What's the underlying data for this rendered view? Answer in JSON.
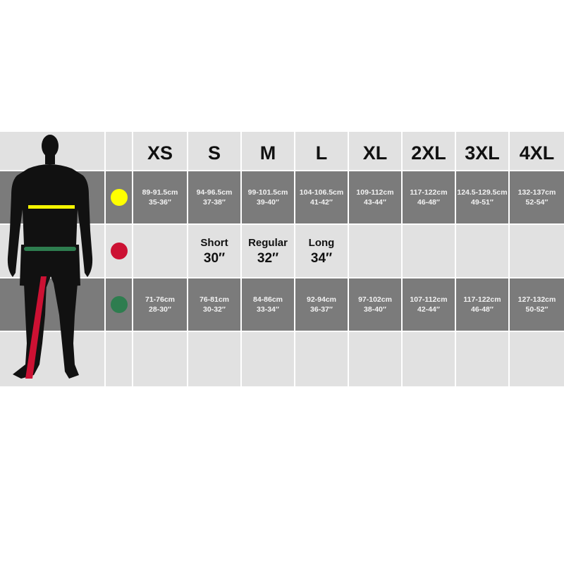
{
  "sizes": [
    "XS",
    "S",
    "M",
    "L",
    "XL",
    "2XL",
    "3XL",
    "4XL"
  ],
  "rows": {
    "chest": {
      "indicator_color": "#ffff00",
      "values": [
        {
          "cm": "89-91.5cm",
          "in": "35-36″"
        },
        {
          "cm": "94-96.5cm",
          "in": "37-38″"
        },
        {
          "cm": "99-101.5cm",
          "in": "39-40″"
        },
        {
          "cm": "104-106.5cm",
          "in": "41-42″"
        },
        {
          "cm": "109-112cm",
          "in": "43-44″"
        },
        {
          "cm": "117-122cm",
          "in": "46-48″"
        },
        {
          "cm": "124.5-129.5cm",
          "in": "49-51″"
        },
        {
          "cm": "132-137cm",
          "in": "52-54″"
        }
      ]
    },
    "inside_leg": {
      "indicator_color": "#cc1133",
      "values": [
        {
          "name": "",
          "size": ""
        },
        {
          "name": "Short",
          "size": "30″"
        },
        {
          "name": "Regular",
          "size": "32″"
        },
        {
          "name": "Long",
          "size": "34″"
        },
        {
          "name": "",
          "size": ""
        },
        {
          "name": "",
          "size": ""
        },
        {
          "name": "",
          "size": ""
        },
        {
          "name": "",
          "size": ""
        }
      ]
    },
    "waist": {
      "indicator_color": "#2e7d4f",
      "values": [
        {
          "cm": "71-76cm",
          "in": "28-30″"
        },
        {
          "cm": "76-81cm",
          "in": "30-32″"
        },
        {
          "cm": "84-86cm",
          "in": "33-34″"
        },
        {
          "cm": "92-94cm",
          "in": "36-37″"
        },
        {
          "cm": "97-102cm",
          "in": "38-40″"
        },
        {
          "cm": "107-112cm",
          "in": "42-44″"
        },
        {
          "cm": "117-122cm",
          "in": "46-48″"
        },
        {
          "cm": "127-132cm",
          "in": "50-52″"
        }
      ]
    }
  },
  "colors": {
    "light_cell": "#e1e1e1",
    "dark_cell": "#7b7b7b",
    "silhouette": "#111111"
  }
}
